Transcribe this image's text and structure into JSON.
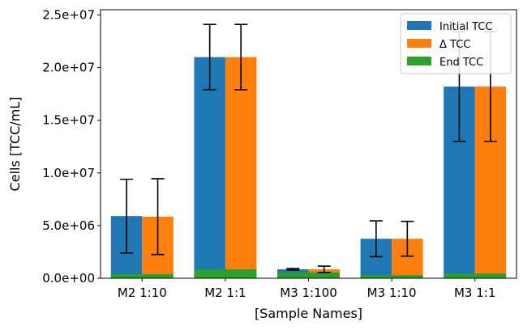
{
  "chart_data": {
    "type": "bar",
    "title": "",
    "xlabel": "[Sample Names]",
    "ylabel": "Cells [TCC/mL]",
    "categories": [
      "M2 1:10",
      "M2 1:1",
      "M3 1:100",
      "M3 1:10",
      "M3 1:1"
    ],
    "ylim": [
      0,
      25500000
    ],
    "yticks": [
      0,
      5000000,
      10000000,
      15000000,
      20000000,
      25000000
    ],
    "ytick_labels": [
      "0.0e+00",
      "5.0e+06",
      "1.0e+07",
      "1.5e+07",
      "2.0e+07",
      "2.5e+07"
    ],
    "series": [
      {
        "name": "Initial TCC",
        "color": "#1f77b4",
        "values": [
          5900000,
          21000000,
          850000,
          3750000,
          18200000
        ],
        "error": [
          3500000,
          3100000,
          80000,
          1700000,
          5200000
        ]
      },
      {
        "name": "Δ TCC",
        "color": "#ff7f0e",
        "values": [
          5850000,
          21000000,
          850000,
          3750000,
          18200000
        ],
        "error": [
          3600000,
          3100000,
          300000,
          1650000,
          5200000
        ]
      },
      {
        "name": "End TCC",
        "color": "#2ca02c",
        "values": [
          400000,
          850000,
          550000,
          300000,
          450000
        ]
      }
    ],
    "legend_position": "top-right",
    "grid": false
  }
}
